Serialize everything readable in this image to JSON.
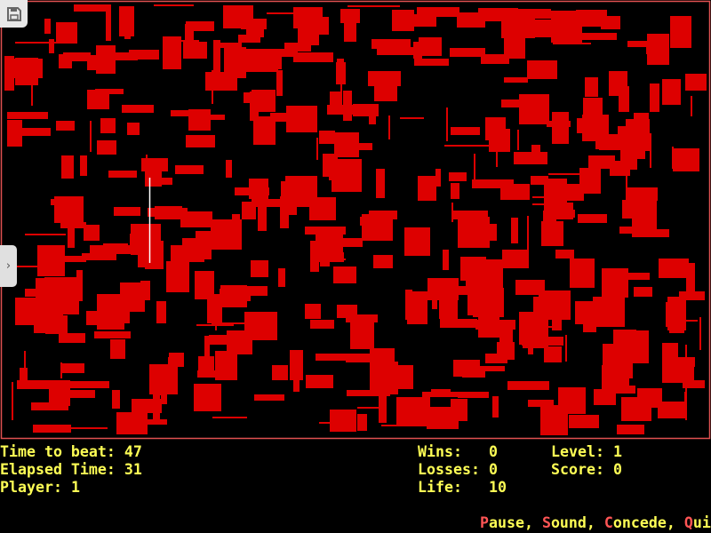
{
  "colors": {
    "field_border": "#e05050",
    "obstacle": "#dd0000",
    "hud_text": "#ffff55",
    "hotkey": "#ff5555",
    "trail": "#ffffff"
  },
  "icons": {
    "save": "floppy-disk-icon",
    "side_panel": "chevron-right-icon"
  },
  "status": {
    "time_to_beat_label": "Time to beat:",
    "time_to_beat": "47",
    "elapsed_label": "Elapsed Time:",
    "elapsed": "31",
    "player_label": "Player:",
    "player": "1",
    "wins_label": "Wins:",
    "wins": "0",
    "losses_label": "Losses:",
    "losses": "0",
    "life_label": "Life:",
    "life": "10",
    "level_label": "Level:",
    "level": "1",
    "score_label": "Score:",
    "score": "0"
  },
  "menu": [
    {
      "key": "P",
      "rest": "ause"
    },
    {
      "key": "S",
      "rest": "ound"
    },
    {
      "key": "C",
      "rest": "oncede"
    },
    {
      "key": "Q",
      "rest": "uit"
    }
  ]
}
